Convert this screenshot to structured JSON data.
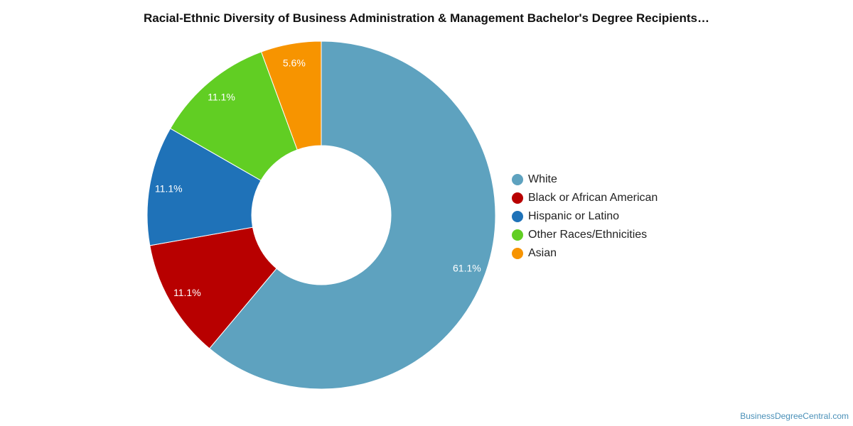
{
  "title": "Racial-Ethnic Diversity of Business Administration & Management Bachelor's Degree Recipients…",
  "credit": "BusinessDegreeCentral.com",
  "chart_data": {
    "type": "pie",
    "style": "donut",
    "legend_position": "right",
    "slices": [
      {
        "name": "White",
        "value": 61.1,
        "label": "61.1%",
        "color": "#5ea2bf"
      },
      {
        "name": "Black or African American",
        "value": 11.1,
        "label": "11.1%",
        "color": "#b80000"
      },
      {
        "name": "Hispanic or Latino",
        "value": 11.1,
        "label": "11.1%",
        "color": "#1f72b8"
      },
      {
        "name": "Other Races/Ethnicities",
        "value": 11.1,
        "label": "11.1%",
        "color": "#61ce23"
      },
      {
        "name": "Asian",
        "value": 5.6,
        "label": "5.6%",
        "color": "#f79400"
      }
    ]
  }
}
